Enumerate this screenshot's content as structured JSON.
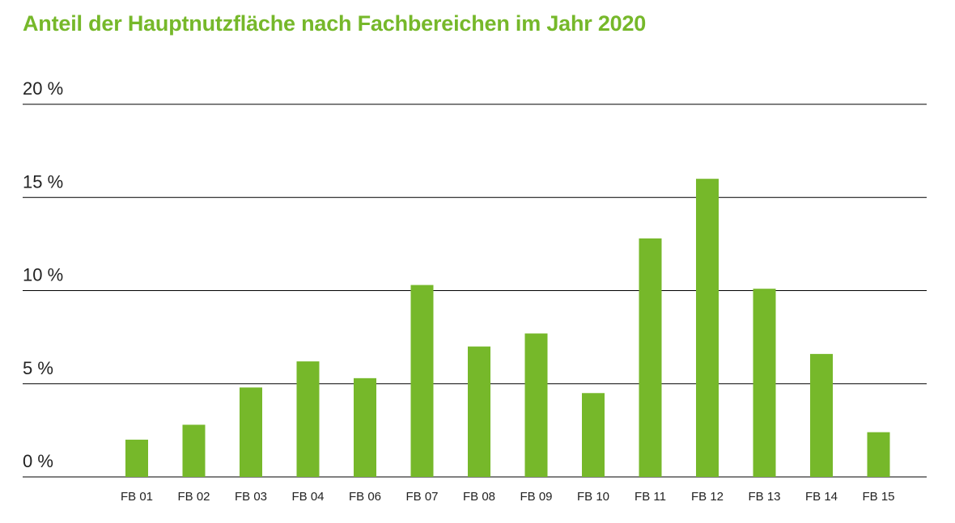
{
  "colors": {
    "bar": "#76b82a",
    "title": "#76b82a",
    "grid": "#000000"
  },
  "chart_data": {
    "type": "bar",
    "title": "Anteil der Hauptnutzfläche nach Fachbereichen im Jahr 2020",
    "xlabel": "",
    "ylabel": "",
    "ylim": [
      0,
      20
    ],
    "yticks": [
      0,
      5,
      10,
      15,
      20
    ],
    "ytick_labels": [
      "0 %",
      "5 %",
      "10 %",
      "15 %",
      "20 %"
    ],
    "grid": true,
    "categories": [
      "FB 01",
      "FB 02",
      "FB 03",
      "FB 04",
      "FB 06",
      "FB 07",
      "FB 08",
      "FB 09",
      "FB 10",
      "FB 11",
      "FB 12",
      "FB 13",
      "FB 14",
      "FB 15"
    ],
    "values": [
      2.0,
      2.8,
      4.8,
      6.2,
      5.3,
      10.3,
      7.0,
      7.7,
      4.5,
      12.8,
      16.0,
      10.1,
      6.6,
      2.4
    ]
  }
}
